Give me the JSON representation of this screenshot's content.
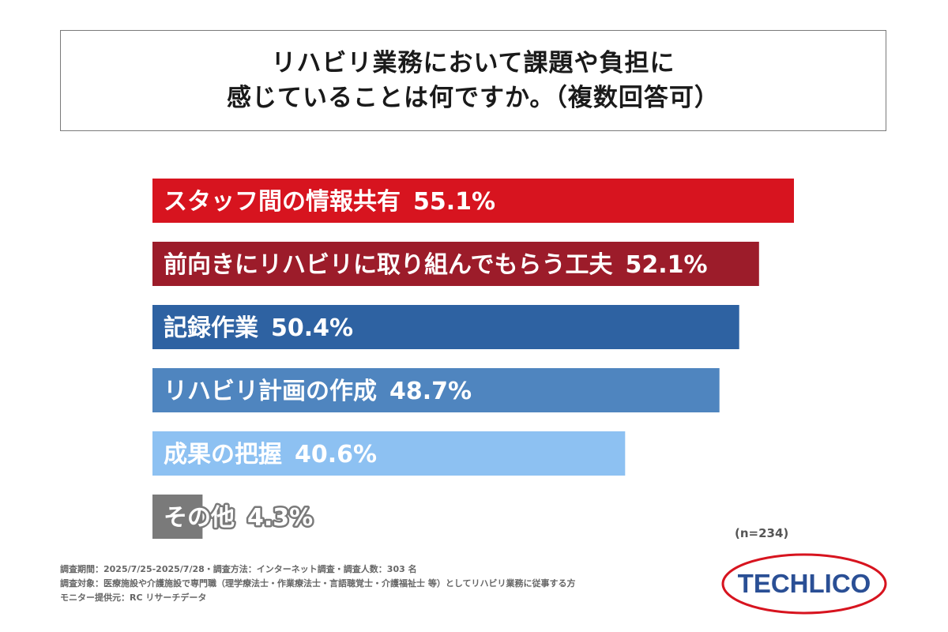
{
  "title": {
    "line1": "リハビリ業務において課題や負担に",
    "line2": "感じていることは何ですか。（複数回答可）"
  },
  "chart_data": {
    "type": "bar",
    "orientation": "horizontal",
    "categories": [
      "スタッフ間の情報共有",
      "前向きにリハビリに取り組んでもらう工夫",
      "記録作業",
      "リハビリ計画の作成",
      "成果の把握",
      "その他"
    ],
    "values": [
      55.1,
      52.1,
      50.4,
      48.7,
      40.6,
      4.3
    ],
    "value_labels": [
      "55.1%",
      "52.1%",
      "50.4%",
      "48.7%",
      "40.6%",
      "4.3%"
    ],
    "unit": "%",
    "colors": [
      "#d7141f",
      "#9c1c2a",
      "#2e62a2",
      "#4f85bf",
      "#8dc1f2",
      "#7a7a7a"
    ],
    "label_position": "inside-left",
    "xlim": [
      0,
      60
    ],
    "grid": false,
    "legend": "none"
  },
  "sample_size": "(n=234)",
  "footnotes": [
    "調査期間：2025/7/25-2025/7/28・調査方法：インターネット調査・調査人数：303 名",
    "調査対象：医療施設や介護施設で専門職（理学療法士・作業療法士・言語聴覚士・介護福祉士 等）としてリハビリ業務に従事する方",
    "モニター提供元：RC リサーチデータ"
  ],
  "logo": {
    "text": "TECHLICO",
    "ring_color": "#d7141f",
    "text_color": "#2a4f95"
  }
}
